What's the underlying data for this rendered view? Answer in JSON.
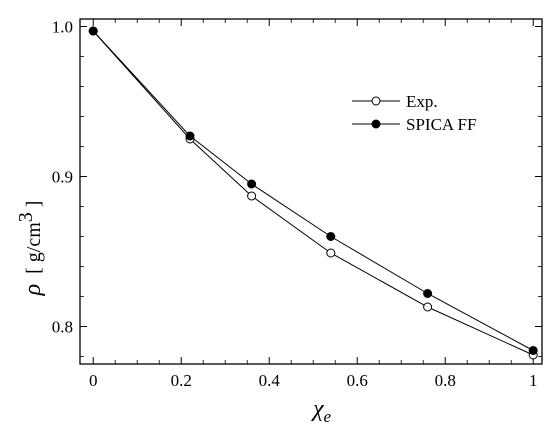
{
  "chart_data": {
    "type": "line",
    "x": [
      0,
      0.22,
      0.36,
      0.54,
      0.76,
      1.0
    ],
    "series": [
      {
        "name": "Exp.",
        "marker": "open-circle",
        "values": [
          0.997,
          0.925,
          0.887,
          0.849,
          0.813,
          0.781
        ]
      },
      {
        "name": "SPICA FF",
        "marker": "filled-circle",
        "values": [
          0.997,
          0.927,
          0.895,
          0.86,
          0.822,
          0.784
        ]
      }
    ],
    "xlabel": "χ",
    "xlabel_sub": "e",
    "ylabel_symbol": "ρ",
    "ylabel_unit_open": "[ g/cm",
    "ylabel_unit_sup": "3",
    "ylabel_unit_close": " ]",
    "xlim": [
      -0.03,
      1.02
    ],
    "ylim": [
      0.775,
      1.005
    ],
    "xticks": [
      "0",
      "0.2",
      "0.4",
      "0.6",
      "0.8",
      "1"
    ],
    "xtick_values": [
      0,
      0.2,
      0.4,
      0.6,
      0.8,
      1.0
    ],
    "yticks": [
      "0.8",
      "0.9",
      "1.0"
    ],
    "ytick_values": [
      0.8,
      0.9,
      1.0
    ],
    "legend_position": "top-right",
    "grid": false,
    "colors": {
      "line": "#000000",
      "open_fill": "#ffffff",
      "filled_fill": "#000000"
    }
  }
}
